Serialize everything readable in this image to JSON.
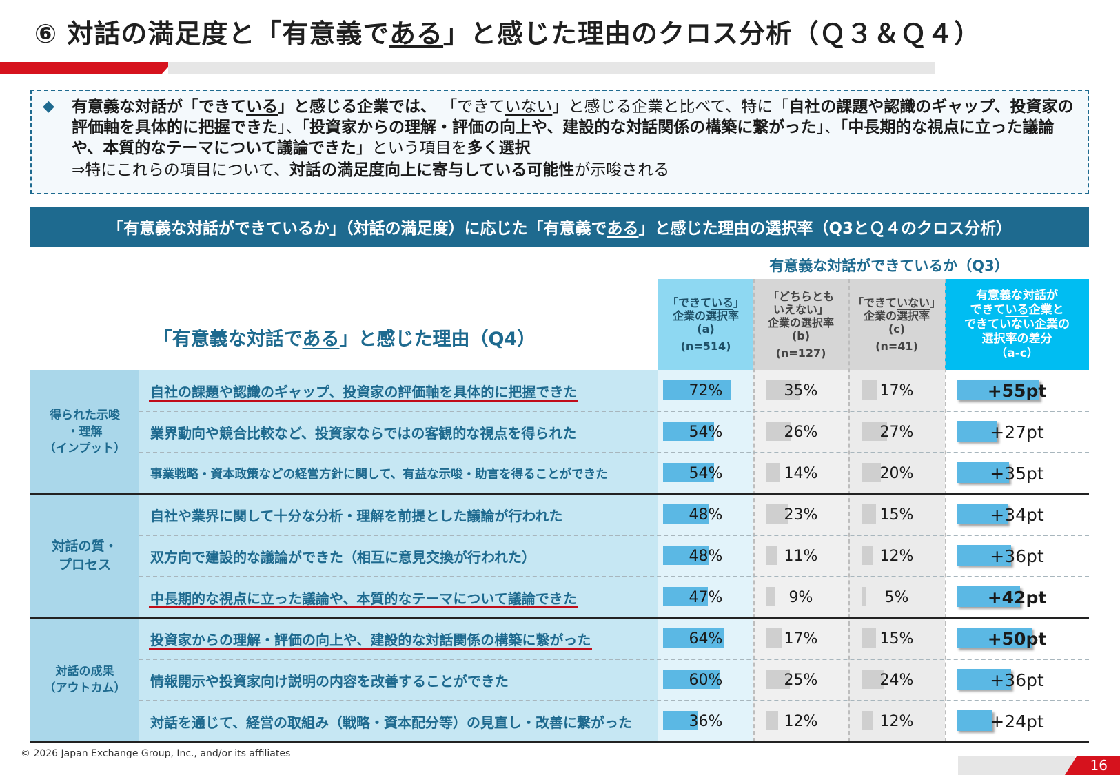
{
  "title": {
    "prefix": "⑥ 対話の満足度と「有意義で",
    "underlined": "ある",
    "suffix": "」と感じた理由のクロス分析（Ｑ３＆Ｑ４）"
  },
  "summary": {
    "bullet_icon": "diamond-icon",
    "p1": "有意義な対話が「できて",
    "p1_ul": "いる",
    "p2": "」と感じる企業では、",
    "p3": "「できて",
    "p3_ul": "いない",
    "p4": "」と感じる企業と比べて、特に「",
    "p5": "自社の課題や認識のギャップ、投資家の評価軸を具体的に把握できた",
    "p6": "」、「",
    "p7": "投資家からの理解・評価の向上や、建設的な対話関係の構築に繋がった",
    "p8": "」、「",
    "p9": "中長期的な視点に立った議論や、本質的なテーマについて議論できた",
    "p10": "」という項目を",
    "p11": "多く選択",
    "n1": "⇒特にこれらの項目について、",
    "n2": "対話の満足度向上に寄与している可能性",
    "n3": "が示唆される"
  },
  "banner": {
    "b1": "「有意義な対話ができているか」（対話の満足度）に応じた「有意義で",
    "b1_ul": "ある",
    "b2": "」と感じた理由の選択率（Q3とＱ４のクロス分析）"
  },
  "q3_header": "有意義な対話ができているか（Q3）",
  "q4_header": {
    "h1": "「有意義な対話で",
    "h1_ul": "ある",
    "h2": "」と感じた理由（Q4）"
  },
  "columns": {
    "a": {
      "l1": "「できて",
      "l1_ul": "いる",
      "l1b": "」",
      "l2": "企業の選択率",
      "l3": "(a)",
      "n": "(n=514)"
    },
    "b": {
      "l1": "「どちらとも",
      "l2": "いえない」",
      "l3": "企業の選択率",
      "l4": "(b)",
      "n": "(n=127)"
    },
    "c": {
      "l1": "「できて",
      "l1_ul": "いない",
      "l1b": "」",
      "l2": "企業の選択率",
      "l3": "(c)",
      "n": "(n=41)"
    },
    "d": {
      "l1": "有意義な対話が",
      "l2": "できて",
      "l2_ul": "いる",
      "l2b": "企業と",
      "l3": "できて",
      "l3_ul": "いない",
      "l3b": "企業の",
      "l4": "選択率の差分",
      "l5": "（a-c）"
    }
  },
  "categories": [
    {
      "l1": "得られた示唆",
      "l2": "・理解",
      "l3": "（インプット）"
    },
    {
      "l1": "対話の質・",
      "l2": "プロセス",
      "l3": ""
    },
    {
      "l1": "対話の成果",
      "l2": "（アウトカム）",
      "l3": ""
    }
  ],
  "chart_data": {
    "type": "table",
    "columns": [
      "「できている」企業の選択率 (a) (n=514)",
      "「どちらともいえない」企業の選択率 (b) (n=127)",
      "「できていない」企業の選択率 (c) (n=41)",
      "有意義な対話ができている企業とできていない企業の選択率の差分（a-c）"
    ],
    "rows": [
      {
        "reason": "自社の課題や認識のギャップ、投資家の評価軸を具体的に把握できた",
        "a": 72,
        "b": 35,
        "c": 17,
        "d": 55,
        "a_label": "72%",
        "b_label": "35%",
        "c_label": "17%",
        "d_label": "+55pt",
        "highlight": true
      },
      {
        "reason": "業界動向や競合比較など、投資家ならではの客観的な視点を得られた",
        "a": 54,
        "b": 26,
        "c": 27,
        "d": 27,
        "a_label": "54%",
        "b_label": "26%",
        "c_label": "27%",
        "d_label": "+27pt",
        "highlight": false
      },
      {
        "reason": "事業戦略・資本政策などの経営方針に関して、有益な示唆・助言を得ることができた",
        "a": 54,
        "b": 14,
        "c": 20,
        "d": 35,
        "a_label": "54%",
        "b_label": "14%",
        "c_label": "20%",
        "d_label": "+35pt",
        "highlight": false
      },
      {
        "reason": "自社や業界に関して十分な分析・理解を前提とした議論が行われた",
        "a": 48,
        "b": 23,
        "c": 15,
        "d": 34,
        "a_label": "48%",
        "b_label": "23%",
        "c_label": "15%",
        "d_label": "+34pt",
        "highlight": false
      },
      {
        "reason": "双方向で建設的な議論ができた（相互に意見交換が行われた）",
        "a": 48,
        "b": 11,
        "c": 12,
        "d": 36,
        "a_label": "48%",
        "b_label": "11%",
        "c_label": "12%",
        "d_label": "+36pt",
        "highlight": false
      },
      {
        "reason": "中長期的な視点に立った議論や、本質的なテーマについて議論できた",
        "a": 47,
        "b": 9,
        "c": 5,
        "d": 42,
        "a_label": "47%",
        "b_label": "9%",
        "c_label": "5%",
        "d_label": "+42pt",
        "highlight": true
      },
      {
        "reason": "投資家からの理解・評価の向上や、建設的な対話関係の構築に繋がった",
        "a": 64,
        "b": 17,
        "c": 15,
        "d": 50,
        "a_label": "64%",
        "b_label": "17%",
        "c_label": "15%",
        "d_label": "+50pt",
        "highlight": true
      },
      {
        "reason": "情報開示や投資家向け説明の内容を改善することができた",
        "a": 60,
        "b": 25,
        "c": 24,
        "d": 36,
        "a_label": "60%",
        "b_label": "25%",
        "c_label": "24%",
        "d_label": "+36pt",
        "highlight": false
      },
      {
        "reason": "対話を通じて、経営の取組み（戦略・資本配分等）の見直し・改善に繋がった",
        "a": 36,
        "b": 12,
        "c": 12,
        "d": 24,
        "a_label": "36%",
        "b_label": "12%",
        "c_label": "12%",
        "d_label": "+24pt",
        "highlight": false
      }
    ],
    "colors": {
      "a_bar": "#5bb8e4",
      "bc_bar": "#cfcfcf",
      "d_bar": "#5bb8e4",
      "highlight_line": "#c00d1a"
    }
  },
  "footer": {
    "copyright": "© 2026 Japan Exchange Group, Inc., and/or its affiliates",
    "page_number": "16"
  }
}
